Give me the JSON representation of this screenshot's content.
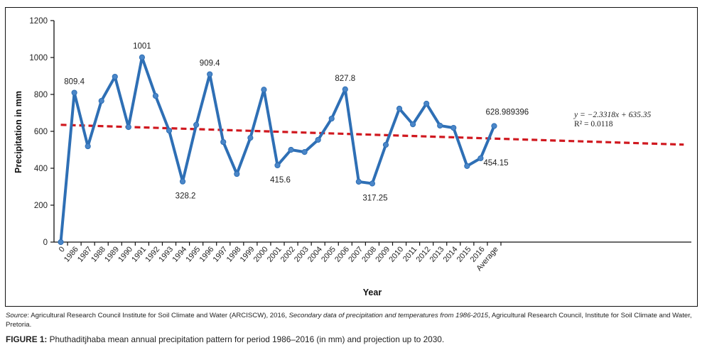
{
  "chart_data": {
    "type": "line",
    "title": "",
    "xlabel": "Year",
    "ylabel": "Precipitation in mm",
    "ylim": [
      0,
      1200
    ],
    "yticks": [
      0,
      200,
      400,
      600,
      800,
      1000,
      1200
    ],
    "grid": false,
    "categories": [
      "0",
      "1986",
      "1987",
      "1988",
      "1989",
      "1990",
      "1991",
      "1992",
      "1993",
      "1994",
      "1995",
      "1996",
      "1997",
      "1998",
      "1999",
      "2000",
      "2001",
      "2002",
      "2003",
      "2004",
      "2005",
      "2006",
      "2007",
      "2008",
      "2009",
      "2010",
      "2011",
      "2012",
      "2013",
      "2014",
      "2015",
      "2016",
      "Average"
    ],
    "series": [
      {
        "name": "Precipitation",
        "color": "#2e6fb5",
        "values": [
          0,
          809.4,
          519,
          765,
          896,
          623,
          1001,
          792,
          604,
          328.2,
          635,
          909.4,
          542,
          369,
          565,
          826,
          415.6,
          500,
          488,
          554,
          669,
          827.8,
          327,
          317.25,
          527,
          723,
          638,
          750,
          631,
          619,
          412,
          454.15,
          628.989396
        ]
      }
    ],
    "data_labels": [
      {
        "index": 1,
        "text": "809.4",
        "position": "above"
      },
      {
        "index": 6,
        "text": "1001",
        "position": "above"
      },
      {
        "index": 9,
        "text": "328.2",
        "position": "below"
      },
      {
        "index": 11,
        "text": "909.4",
        "position": "above"
      },
      {
        "index": 16,
        "text": "415.6",
        "position": "below"
      },
      {
        "index": 21,
        "text": "827.8",
        "position": "above"
      },
      {
        "index": 23,
        "text": "317.25",
        "position": "below"
      },
      {
        "index": 31,
        "text": "454.15",
        "position": "right"
      },
      {
        "index": 32,
        "text": "628.989396",
        "position": "above"
      }
    ],
    "trendline": {
      "type": "linear",
      "color": "#d0181f",
      "style": "dashed",
      "slope": -2.3318,
      "intercept": 635.35,
      "extends_to_index": 46,
      "equation": "y = −2.3318x + 635.35",
      "r_squared": "R² = 0.0118"
    }
  },
  "source": {
    "prefix": "Source",
    "text1": ": Agricultural Research Council Institute for Soil Climate and Water (ARCISCW), 2016, ",
    "italic": "Secondary data of precipitation and temperatures from 1986-2015",
    "text2": ", Agricultural Research Council, Institute for Soil Climate and Water, Pretoria."
  },
  "caption": {
    "label": "FIGURE 1:",
    "text": " Phuthaditjhaba mean annual precipitation pattern for period 1986–2016 (in mm) and projection up to 2030."
  }
}
